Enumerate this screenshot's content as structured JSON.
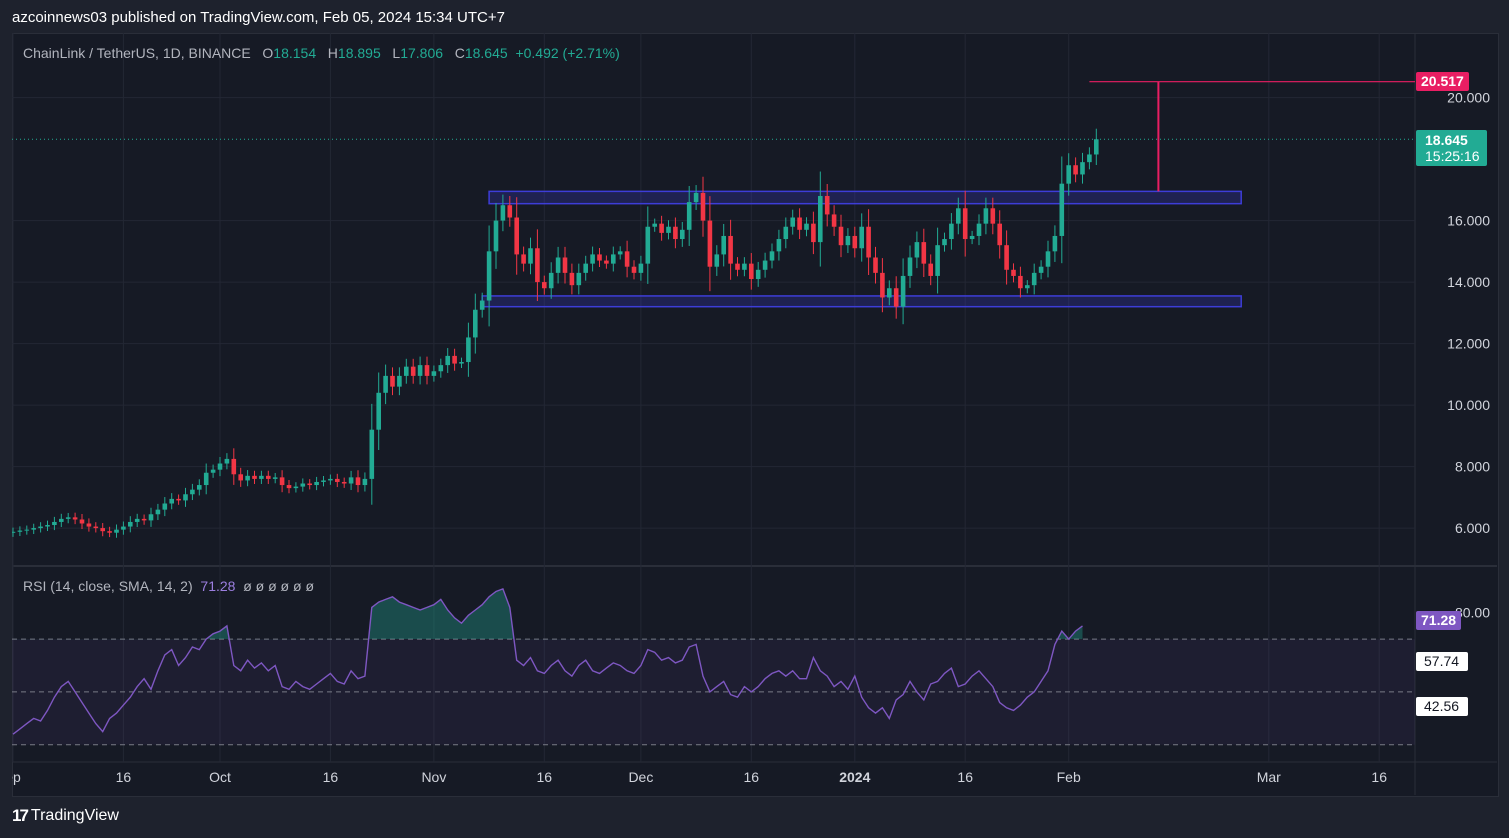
{
  "publisher": "azcoinnews03 published on TradingView.com, Feb 05, 2024 15:34 UTC+7",
  "legend": {
    "symbol": "ChainLink / TetherUS, 1D, BINANCE",
    "open_label": "O",
    "open": "18.154",
    "high_label": "H",
    "high": "18.895",
    "low_label": "L",
    "low": "17.806",
    "close_label": "C",
    "close": "18.645",
    "change": "+0.492 (+2.71%)"
  },
  "rsi_legend": {
    "label": "RSI (14, close, SMA, 14, 2)",
    "value": "71.28",
    "placeholders": "ø ø ø ø ø ø"
  },
  "price_tags": {
    "target": "20.517",
    "last": "18.645",
    "countdown": "15:25:16",
    "rsi": "71.28",
    "bb_upper": "57.74",
    "bb_lower": "42.56"
  },
  "brand": "TradingView",
  "colors": {
    "up": "#22ab94",
    "down": "#f23645",
    "rsi": "#7e57c2",
    "box": "#3d3dd8",
    "target": "#e91e63"
  },
  "chart_data": [
    {
      "type": "candlestick",
      "title": "ChainLink / TetherUS, 1D, BINANCE",
      "ylim": [
        4.8,
        22.1
      ],
      "y_ticks": [
        6,
        8,
        10,
        12,
        14,
        16,
        20
      ],
      "y_tick_labels": [
        "6.000",
        "8.000",
        "10.000",
        "12.000",
        "14.000",
        "16.000",
        "20.000"
      ],
      "x_ticks": [
        "ep",
        "16",
        "Oct",
        "16",
        "Nov",
        "16",
        "Dec",
        "16",
        "2024",
        "16",
        "Feb",
        "Mar",
        "16"
      ],
      "x_tick_days": [
        0,
        16,
        30,
        46,
        61,
        77,
        91,
        107,
        122,
        138,
        153,
        182,
        198
      ],
      "closes": [
        5.88,
        5.92,
        5.95,
        6.0,
        6.05,
        6.1,
        6.2,
        6.3,
        6.35,
        6.28,
        6.15,
        6.05,
        6.0,
        5.9,
        5.85,
        5.95,
        6.05,
        6.2,
        6.3,
        6.25,
        6.45,
        6.6,
        6.8,
        6.95,
        6.9,
        7.1,
        7.25,
        7.4,
        7.8,
        7.9,
        8.1,
        8.25,
        7.75,
        7.55,
        7.7,
        7.6,
        7.7,
        7.6,
        7.65,
        7.4,
        7.3,
        7.35,
        7.45,
        7.4,
        7.5,
        7.55,
        7.6,
        7.5,
        7.45,
        7.65,
        7.4,
        7.6,
        9.2,
        10.4,
        10.95,
        10.6,
        10.95,
        11.25,
        10.95,
        11.3,
        10.95,
        11.1,
        11.3,
        11.6,
        11.35,
        11.4,
        12.2,
        13.1,
        13.4,
        15.0,
        16.0,
        16.5,
        16.1,
        14.9,
        14.6,
        15.1,
        14.0,
        13.8,
        14.3,
        14.8,
        14.3,
        13.9,
        14.3,
        14.6,
        14.9,
        14.7,
        14.6,
        14.9,
        15.0,
        14.5,
        14.3,
        14.6,
        15.8,
        15.9,
        15.6,
        15.8,
        15.4,
        15.7,
        16.6,
        16.9,
        16.0,
        14.5,
        14.9,
        15.5,
        14.6,
        14.4,
        14.6,
        14.1,
        14.4,
        14.7,
        15.0,
        15.4,
        15.8,
        16.1,
        15.7,
        15.9,
        15.3,
        16.8,
        16.2,
        15.8,
        15.2,
        15.5,
        15.1,
        15.8,
        14.8,
        14.3,
        13.5,
        13.8,
        13.2,
        14.2,
        14.8,
        15.3,
        14.6,
        14.2,
        15.2,
        15.4,
        15.9,
        16.4,
        15.4,
        15.5,
        15.9,
        16.4,
        15.9,
        15.2,
        14.4,
        14.2,
        13.8,
        13.9,
        14.3,
        14.5,
        15.0,
        15.5,
        17.2,
        17.8,
        17.5,
        17.9,
        18.15,
        18.645
      ],
      "target_high": 20.517,
      "consolidation_box": {
        "top": 16.95,
        "bottom": 16.55
      },
      "support_box": {
        "top": 13.55,
        "bottom": 13.2
      },
      "last_price": 18.645
    },
    {
      "type": "line",
      "title": "RSI (14, close, SMA, 14, 2)",
      "ylim": [
        25,
        95
      ],
      "levels": [
        70,
        50,
        30
      ],
      "y_tick_labels": [
        "80.00"
      ],
      "values": [
        34,
        36,
        38,
        40,
        39,
        43,
        48,
        52,
        54,
        50,
        46,
        42,
        38,
        35,
        40,
        42,
        45,
        48,
        52,
        55,
        51,
        58,
        64,
        66,
        60,
        63,
        67,
        66,
        70,
        72,
        73,
        75,
        60,
        58,
        62,
        59,
        61,
        58,
        60,
        52,
        51,
        54,
        52,
        51,
        53,
        55,
        57,
        54,
        53,
        58,
        55,
        56,
        82,
        84,
        85,
        86,
        84,
        83,
        82,
        81,
        82,
        83,
        85,
        81,
        78,
        76,
        79,
        81,
        83,
        86,
        88,
        89,
        82,
        62,
        60,
        63,
        58,
        57,
        60,
        62,
        58,
        56,
        60,
        62,
        58,
        57,
        59,
        61,
        60,
        58,
        57,
        60,
        66,
        65,
        62,
        63,
        61,
        62,
        67,
        68,
        56,
        50,
        52,
        54,
        49,
        48,
        52,
        50,
        52,
        55,
        57,
        58,
        56,
        58,
        55,
        55,
        63,
        58,
        56,
        52,
        54,
        51,
        56,
        48,
        44,
        42,
        44,
        40,
        47,
        49,
        54,
        50,
        47,
        53,
        54,
        57,
        59,
        52,
        53,
        56,
        58,
        55,
        52,
        46,
        44,
        43,
        45,
        48,
        50,
        54,
        58,
        68,
        73,
        70,
        73,
        75
      ]
    }
  ]
}
